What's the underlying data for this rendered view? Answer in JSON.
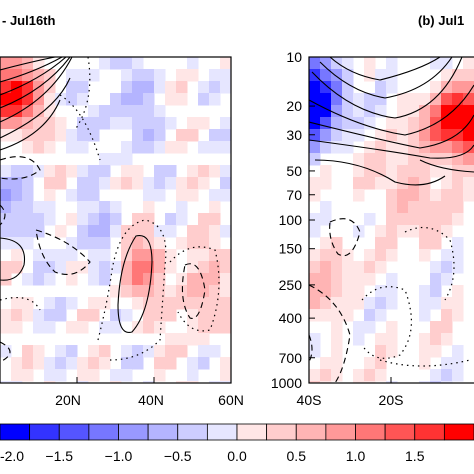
{
  "chart_data": [
    {
      "type": "heatmap",
      "title": "- Jul16th",
      "x_tick_labels": [
        "20N",
        "40N",
        "60N"
      ],
      "xlim_deg": [
        0,
        60
      ],
      "y_axis": "pressure (hPa, log)",
      "ylim_hpa": [
        1000,
        10
      ],
      "shading": "anomaly (blue negative, red positive)",
      "contours": "solid positive, dashed negative, dotted zero",
      "stippling": "significant regions"
    },
    {
      "type": "heatmap",
      "title": "(b) Jul1",
      "x_tick_labels": [
        "40S",
        "20S"
      ],
      "xlim_deg": [
        -40,
        0
      ],
      "y_tick_labels": [
        "10",
        "20",
        "30",
        "50",
        "70",
        "100",
        "150",
        "250",
        "400",
        "700",
        "1000"
      ],
      "y_values_hpa": [
        10,
        20,
        30,
        50,
        70,
        100,
        150,
        250,
        400,
        700,
        1000
      ],
      "ylim_hpa": [
        1000,
        10
      ],
      "y_scale": "log"
    }
  ],
  "colorbar": {
    "tick_labels": [
      "-2.0",
      "−1.5",
      "−1.0",
      "−0.5",
      "0.0",
      "0.5",
      "1.0",
      "1.5"
    ],
    "tick_values": [
      -2.0,
      -1.5,
      -1.0,
      -0.5,
      0.0,
      0.5,
      1.0,
      1.5
    ],
    "range": [
      -2.0,
      2.0
    ],
    "step": 0.25,
    "colors": [
      "#0000ff",
      "#3333ff",
      "#5555ff",
      "#7777ff",
      "#9999ff",
      "#b4b4ff",
      "#cdcdff",
      "#e6e6ff",
      "#ffe6e6",
      "#ffcdcd",
      "#ffb4b4",
      "#ff9999",
      "#ff7777",
      "#ff5555",
      "#ff3333",
      "#ff0000"
    ]
  }
}
